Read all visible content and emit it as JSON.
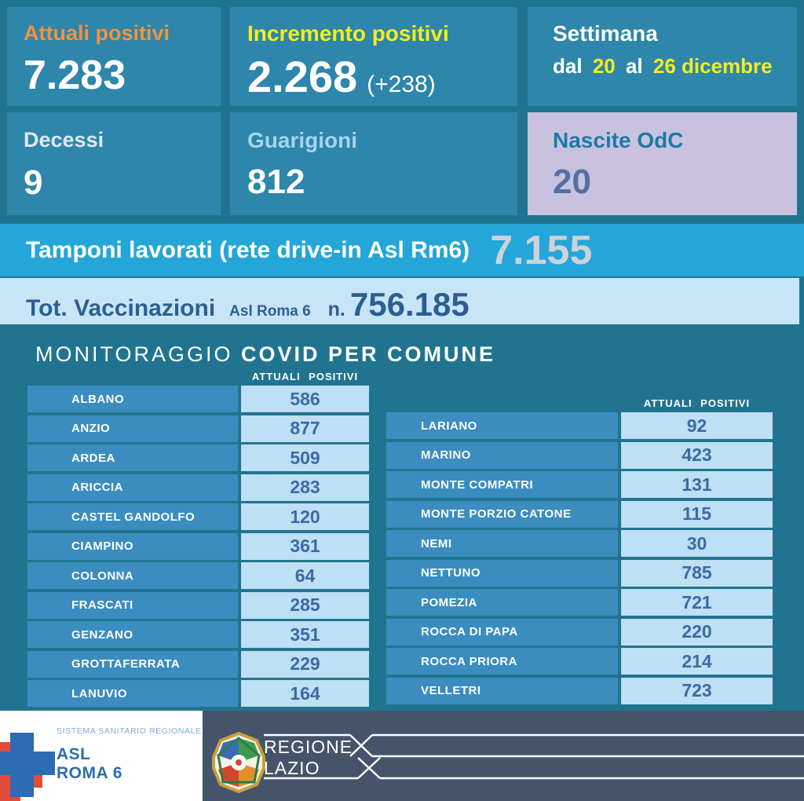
{
  "summary": {
    "attuali_positivi": {
      "label": "Attuali positivi",
      "value": "7.283"
    },
    "incremento_positivi": {
      "label": "Incremento positivi",
      "value": "2.268",
      "delta": "(+238)"
    },
    "settimana": {
      "label": "Settimana",
      "pre": "dal",
      "from_day": "20",
      "mid": "al",
      "to_day": "26 dicembre"
    },
    "decessi": {
      "label": "Decessi",
      "value": "9"
    },
    "guarigioni": {
      "label": "Guarigioni",
      "value": "812"
    },
    "nascite_odc": {
      "label": "Nascite OdC",
      "value": "20"
    }
  },
  "tamponi": {
    "label": "Tamponi lavorati (rete drive-in Asl Rm6)",
    "value": "7.155"
  },
  "vaccinazioni": {
    "label": "Tot. Vaccinazioni",
    "scope": "Asl Roma 6",
    "prefix": "n.",
    "value": "756.185"
  },
  "monitoraggio": {
    "title_light": "MONITORAGGIO",
    "title_bold": "COVID PER COMUNE",
    "column_header": "ATTUALI POSITIVI"
  },
  "chart_data": {
    "type": "table",
    "title": "MONITORAGGIO COVID PER COMUNE",
    "column_header": "ATTUALI POSITIVI",
    "tables": [
      {
        "rows": [
          {
            "name": "ALBANO",
            "value": "586"
          },
          {
            "name": "ANZIO",
            "value": "877"
          },
          {
            "name": "ARDEA",
            "value": "509"
          },
          {
            "name": "ARICCIA",
            "value": "283"
          },
          {
            "name": "CASTEL GANDOLFO",
            "value": "120"
          },
          {
            "name": "CIAMPINO",
            "value": "361"
          },
          {
            "name": "COLONNA",
            "value": "64"
          },
          {
            "name": "FRASCATI",
            "value": "285"
          },
          {
            "name": "GENZANO",
            "value": "351"
          },
          {
            "name": "GROTTAFERRATA",
            "value": "229"
          },
          {
            "name": "LANUVIO",
            "value": "164"
          }
        ]
      },
      {
        "rows": [
          {
            "name": "LARIANO",
            "value": "92"
          },
          {
            "name": "MARINO",
            "value": "423"
          },
          {
            "name": "MONTE COMPATRI",
            "value": "131"
          },
          {
            "name": "MONTE PORZIO CATONE",
            "value": "115"
          },
          {
            "name": "NEMI",
            "value": "30"
          },
          {
            "name": "NETTUNO",
            "value": "785"
          },
          {
            "name": "POMEZIA",
            "value": "721"
          },
          {
            "name": "ROCCA DI PAPA",
            "value": "220"
          },
          {
            "name": "ROCCA PRIORA",
            "value": "214"
          },
          {
            "name": "VELLETRI",
            "value": "723"
          }
        ]
      }
    ]
  },
  "footer": {
    "ssr_label": "SISTEMA SANITARIO REGIONALE",
    "asl_line1": "ASL",
    "asl_line2": "ROMA 6",
    "regione_line1": "REGIONE",
    "regione_line2": "LAZIO"
  },
  "colors": {
    "background_teal": "#21748f",
    "card_teal": "#2e86aa",
    "accent_orange": "#f1933f",
    "accent_yellow": "#f7ed1c",
    "lavender_card": "#c8c2e0",
    "tamponi_band": "#25a6d8",
    "vacc_band": "#c8e5f8",
    "dark_blue_text": "#2c5f91",
    "table_name_cell": "#3b8dc0",
    "table_value_cell": "#bedff4",
    "table_value_text": "#3a6ba5",
    "footer_slate": "#46546b",
    "asl_blue": "#2d6cb2",
    "asl_red": "#e14b3c"
  }
}
